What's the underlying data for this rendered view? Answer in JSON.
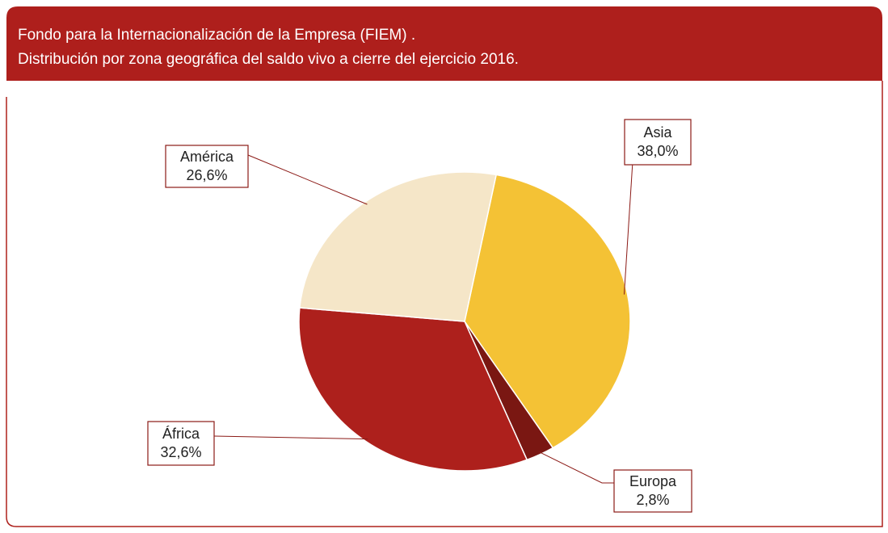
{
  "chart_data": {
    "type": "pie",
    "title": [
      "Fondo para la Internacionalización de la Empresa (FIEM) .",
      "Distribución por zona geográfica del saldo vivo a cierre del ejercicio 2016."
    ],
    "categories": [
      "Asia",
      "Europa",
      "África",
      "América"
    ],
    "values": [
      38.0,
      2.8,
      32.6,
      26.6
    ],
    "value_labels": [
      "38,0%",
      "2,8%",
      "32,6%",
      "26,6%"
    ],
    "colors": [
      "#f4c235",
      "#7a1712",
      "#ad201c",
      "#f5e6c8"
    ]
  }
}
